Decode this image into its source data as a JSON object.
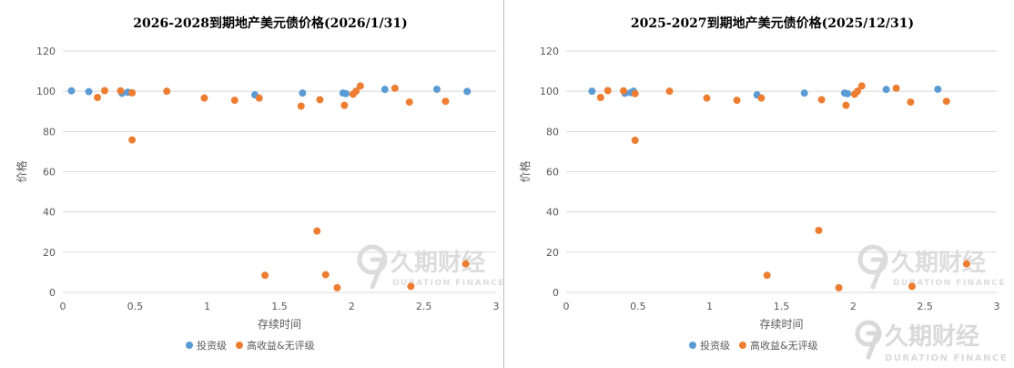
{
  "colors": {
    "investment_grade": "#5b9bd5",
    "high_yield": "#ed7d31",
    "grid": "#d9d9d9",
    "axis_text": "#595959",
    "title_text": "#000000",
    "watermark": "#d9d9d9"
  },
  "watermark": {
    "logo_text": "久期财经",
    "logo_sub": "DURATION FINANCE"
  },
  "chart_data": [
    {
      "type": "scatter",
      "title": "2026-2028到期地产美元债价格(2026/1/31)",
      "xlabel": "存续时间",
      "ylabel": "价格",
      "xlim": [
        0,
        3
      ],
      "ylim": [
        0,
        120
      ],
      "x_ticks": [
        "0",
        "0.5",
        "1",
        "1.5",
        "2",
        "2.5",
        "3"
      ],
      "y_ticks": [
        "0",
        "20",
        "40",
        "60",
        "80",
        "100",
        "120"
      ],
      "grid": "horizontal",
      "legend_position": "bottom",
      "series": [
        {
          "name": "投资级",
          "color": "#5b9bd5",
          "points": [
            [
              0.06,
              100.2
            ],
            [
              0.18,
              99.8
            ],
            [
              0.41,
              99.0
            ],
            [
              0.45,
              99.5
            ],
            [
              1.33,
              98.2
            ],
            [
              1.66,
              99.1
            ],
            [
              1.94,
              99.1
            ],
            [
              1.96,
              98.8
            ],
            [
              2.23,
              100.9
            ],
            [
              2.59,
              101.0
            ],
            [
              2.8,
              99.9
            ]
          ]
        },
        {
          "name": "高收益&无评级",
          "color": "#ed7d31",
          "points": [
            [
              0.24,
              96.9
            ],
            [
              0.29,
              100.3
            ],
            [
              0.4,
              100.2
            ],
            [
              0.48,
              99.2
            ],
            [
              0.48,
              75.8
            ],
            [
              0.72,
              100.0
            ],
            [
              0.98,
              96.6
            ],
            [
              1.19,
              95.5
            ],
            [
              1.36,
              96.6
            ],
            [
              1.4,
              8.5
            ],
            [
              1.65,
              92.6
            ],
            [
              1.76,
              30.5
            ],
            [
              1.78,
              95.8
            ],
            [
              1.82,
              8.8
            ],
            [
              1.9,
              2.3
            ],
            [
              1.95,
              93.0
            ],
            [
              2.01,
              98.5
            ],
            [
              2.03,
              100.0
            ],
            [
              2.06,
              102.6
            ],
            [
              2.3,
              101.5
            ],
            [
              2.4,
              94.6
            ],
            [
              2.41,
              3.0
            ],
            [
              2.65,
              95.0
            ],
            [
              2.79,
              14.2
            ]
          ]
        }
      ]
    },
    {
      "type": "scatter",
      "title": "2025-2027到期地产美元债价格(2025/12/31)",
      "xlabel": "存续时间",
      "ylabel": "价格",
      "xlim": [
        0,
        3
      ],
      "ylim": [
        0,
        120
      ],
      "x_ticks": [
        "0",
        "0.5",
        "1",
        "1.5",
        "2",
        "2.5",
        "3"
      ],
      "y_ticks": [
        "0",
        "20",
        "40",
        "60",
        "80",
        "100",
        "120"
      ],
      "grid": "horizontal",
      "legend_position": "bottom",
      "series": [
        {
          "name": "投资级",
          "color": "#5b9bd5",
          "points": [
            [
              0.18,
              100.0
            ],
            [
              0.41,
              99.0
            ],
            [
              0.45,
              99.3
            ],
            [
              0.47,
              100.0
            ],
            [
              1.33,
              98.2
            ],
            [
              1.66,
              99.1
            ],
            [
              1.94,
              99.1
            ],
            [
              1.96,
              98.8
            ],
            [
              2.23,
              100.9
            ],
            [
              2.59,
              101.0
            ]
          ]
        },
        {
          "name": "高收益&无评级",
          "color": "#ed7d31",
          "points": [
            [
              0.24,
              96.9
            ],
            [
              0.29,
              100.3
            ],
            [
              0.4,
              100.2
            ],
            [
              0.48,
              98.8
            ],
            [
              0.48,
              75.6
            ],
            [
              0.72,
              100.0
            ],
            [
              0.98,
              96.6
            ],
            [
              1.19,
              95.5
            ],
            [
              1.36,
              96.6
            ],
            [
              1.4,
              8.5
            ],
            [
              1.76,
              30.8
            ],
            [
              1.78,
              95.8
            ],
            [
              1.9,
              2.3
            ],
            [
              1.95,
              93.0
            ],
            [
              2.01,
              98.5
            ],
            [
              2.03,
              100.0
            ],
            [
              2.06,
              102.6
            ],
            [
              2.3,
              101.5
            ],
            [
              2.4,
              94.6
            ],
            [
              2.41,
              3.0
            ],
            [
              2.65,
              95.0
            ],
            [
              2.79,
              14.2
            ]
          ]
        }
      ]
    }
  ]
}
